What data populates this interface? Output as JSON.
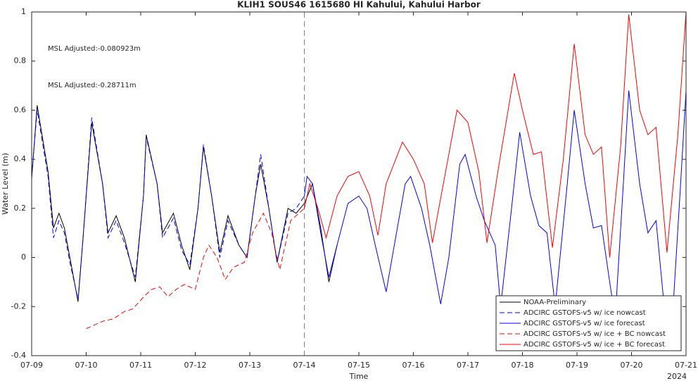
{
  "chart_data": {
    "type": "line",
    "title": "KLIH1 SOUS46 1615680 HI Kahului, Kahului Harbor",
    "xlabel": "Time",
    "ylabel": "Water Level (m)",
    "x_axis_year": "2024",
    "annotations": [
      {
        "text": "MSL Adjusted:-0.080923m",
        "color": "#0000ff"
      },
      {
        "text": "MSL Adjusted:-0.28711m",
        "color": "#ff0000"
      }
    ],
    "xlim": [
      0,
      12
    ],
    "xticks": [
      {
        "value": 0,
        "label": "07-09"
      },
      {
        "value": 1,
        "label": "07-10"
      },
      {
        "value": 2,
        "label": "07-11"
      },
      {
        "value": 3,
        "label": "07-12"
      },
      {
        "value": 4,
        "label": "07-13"
      },
      {
        "value": 5,
        "label": "07-14"
      },
      {
        "value": 6,
        "label": "07-15"
      },
      {
        "value": 7,
        "label": "07-16"
      },
      {
        "value": 8,
        "label": "07-17"
      },
      {
        "value": 9,
        "label": "07-18"
      },
      {
        "value": 10,
        "label": "07-19"
      },
      {
        "value": 11,
        "label": "07-20"
      },
      {
        "value": 12,
        "label": "07-21"
      }
    ],
    "ylim": [
      -0.4,
      1
    ],
    "yticks": [
      -0.4,
      -0.2,
      0,
      0.2,
      0.4,
      0.6,
      0.8,
      1
    ],
    "vline": 5,
    "legend": "lower right",
    "series": [
      {
        "name": "NOAA-Preliminary",
        "color": "#000000",
        "dashed": false,
        "x": [
          0,
          0.1,
          0.3,
          0.4,
          0.5,
          0.6,
          0.7,
          0.85,
          0.95,
          1.1,
          1.3,
          1.4,
          1.55,
          1.7,
          1.9,
          2.05,
          2.1,
          2.3,
          2.4,
          2.6,
          2.75,
          2.9,
          3.05,
          3.15,
          3.3,
          3.45,
          3.6,
          3.8,
          3.95,
          4.1,
          4.2,
          4.35,
          4.5,
          4.7,
          4.85,
          5.0,
          5.15,
          5.3,
          5.45,
          5.6
        ],
        "values": [
          0.32,
          0.62,
          0.35,
          0.12,
          0.18,
          0.12,
          0.0,
          -0.18,
          0.1,
          0.55,
          0.3,
          0.1,
          0.17,
          0.08,
          -0.1,
          0.25,
          0.5,
          0.3,
          0.1,
          0.18,
          0.05,
          -0.05,
          0.2,
          0.45,
          0.25,
          0.02,
          0.17,
          0.05,
          0.0,
          0.25,
          0.38,
          0.2,
          -0.02,
          0.2,
          0.18,
          0.22,
          0.3,
          0.12,
          -0.1,
          0.05
        ]
      },
      {
        "name": "ADCIRC GSTOFS-v5 w/ ice nowcast",
        "color": "#0000ff",
        "dashed": true,
        "x": [
          0,
          0.1,
          0.3,
          0.4,
          0.5,
          0.6,
          0.7,
          0.85,
          0.95,
          1.1,
          1.3,
          1.4,
          1.55,
          1.7,
          1.9,
          2.05,
          2.1,
          2.3,
          2.4,
          2.6,
          2.75,
          2.9,
          3.05,
          3.15,
          3.3,
          3.45,
          3.6,
          3.8,
          3.95,
          4.1,
          4.2,
          4.35,
          4.5,
          4.7,
          4.85,
          5.0
        ],
        "values": [
          0.33,
          0.6,
          0.33,
          0.08,
          0.15,
          0.1,
          -0.02,
          -0.17,
          0.1,
          0.57,
          0.3,
          0.08,
          0.15,
          0.06,
          -0.08,
          0.25,
          0.49,
          0.3,
          0.08,
          0.16,
          0.03,
          -0.03,
          0.2,
          0.46,
          0.25,
          0.0,
          0.15,
          0.05,
          0.0,
          0.25,
          0.42,
          0.2,
          -0.02,
          0.18,
          0.2,
          0.25
        ]
      },
      {
        "name": "ADCIRC GSTOFS-v5 w/ ice forecast",
        "color": "#0000ff",
        "dashed": false,
        "x": [
          5.0,
          5.05,
          5.15,
          5.3,
          5.45,
          5.6,
          5.8,
          6.0,
          6.15,
          6.3,
          6.5,
          6.65,
          6.85,
          6.95,
          7.15,
          7.3,
          7.5,
          7.65,
          7.85,
          7.95,
          8.15,
          8.3,
          8.5,
          8.6,
          8.8,
          8.95,
          9.15,
          9.3,
          9.45,
          9.6,
          9.8,
          9.95,
          10.15,
          10.3,
          10.45,
          10.6,
          10.7,
          10.85,
          10.95,
          11.15,
          11.3,
          11.45,
          11.6,
          11.75,
          11.9,
          12.0
        ],
        "values": [
          0.25,
          0.33,
          0.3,
          0.1,
          -0.08,
          0.05,
          0.22,
          0.25,
          0.2,
          0.05,
          -0.14,
          0.05,
          0.3,
          0.33,
          0.2,
          0.05,
          -0.19,
          0.0,
          0.38,
          0.42,
          0.25,
          0.15,
          0.05,
          -0.2,
          0.2,
          0.51,
          0.25,
          0.13,
          0.1,
          -0.2,
          0.25,
          0.6,
          0.3,
          0.12,
          0.13,
          -0.1,
          -0.25,
          0.3,
          0.68,
          0.3,
          0.1,
          0.15,
          -0.2,
          -0.25,
          0.3,
          0.68
        ]
      },
      {
        "name": "ADCIRC GSTOFS-v5 w/ ice + BC nowcast",
        "color": "#ff0000",
        "dashed": true,
        "x": [
          1.0,
          1.3,
          1.5,
          1.7,
          1.85,
          2.1,
          2.2,
          2.35,
          2.5,
          2.65,
          2.8,
          3.0,
          3.15,
          3.25,
          3.4,
          3.55,
          3.7,
          3.9,
          4.05,
          4.25,
          4.4,
          4.55,
          4.75,
          5.0
        ],
        "values": [
          -0.29,
          -0.26,
          -0.25,
          -0.22,
          -0.21,
          -0.15,
          -0.13,
          -0.12,
          -0.16,
          -0.13,
          -0.11,
          -0.13,
          0.0,
          0.05,
          0.0,
          -0.09,
          -0.04,
          -0.02,
          0.1,
          0.18,
          0.1,
          -0.05,
          0.15,
          0.2
        ]
      },
      {
        "name": "ADCIRC GSTOFS-v5 w/ ice + BC forecast",
        "color": "#ff0000",
        "dashed": false,
        "x": [
          5.0,
          5.1,
          5.25,
          5.4,
          5.6,
          5.8,
          6.0,
          6.2,
          6.35,
          6.5,
          6.8,
          7.0,
          7.2,
          7.35,
          7.55,
          7.8,
          8.0,
          8.2,
          8.35,
          8.55,
          8.85,
          9.0,
          9.2,
          9.35,
          9.55,
          9.75,
          9.95,
          10.15,
          10.3,
          10.45,
          10.6,
          10.8,
          10.95,
          11.15,
          11.3,
          11.45,
          11.65,
          11.85,
          12.0
        ],
        "values": [
          0.2,
          0.3,
          0.2,
          0.08,
          0.25,
          0.33,
          0.35,
          0.25,
          0.09,
          0.3,
          0.47,
          0.4,
          0.3,
          0.06,
          0.3,
          0.6,
          0.55,
          0.35,
          0.06,
          0.35,
          0.75,
          0.6,
          0.42,
          0.43,
          0.04,
          0.4,
          0.87,
          0.5,
          0.42,
          0.45,
          0.0,
          0.45,
          0.99,
          0.6,
          0.5,
          0.53,
          0.02,
          0.5,
          1.0
        ]
      }
    ]
  }
}
